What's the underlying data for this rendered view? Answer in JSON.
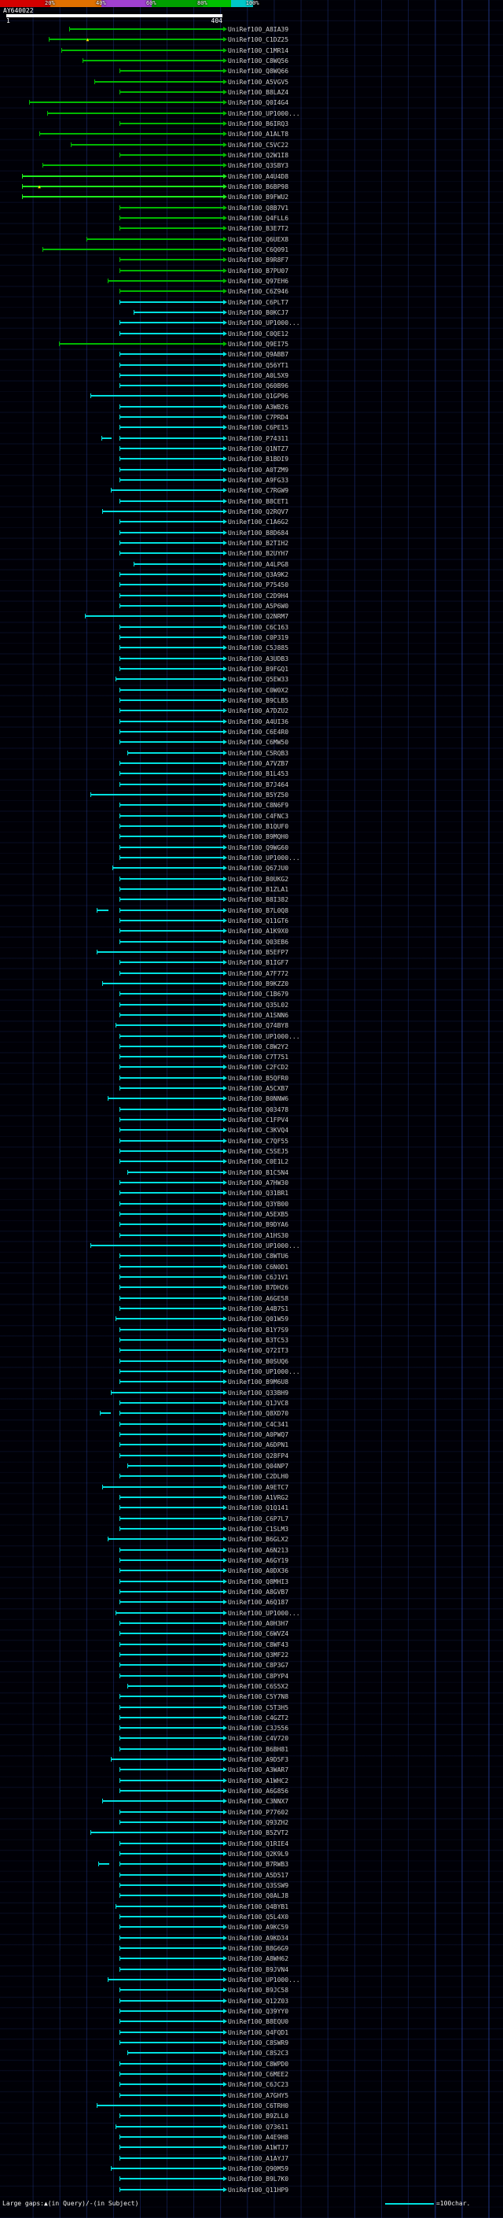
{
  "chart_data": {
    "type": "bar",
    "subtype": "sequence-similarity-alignment-overview",
    "title": "AY640022",
    "x_range": [
      1,
      404
    ],
    "legend_position": "top",
    "grid": true,
    "scale_bar": {
      "segments": [
        {
          "color": "#d40000",
          "width": 64
        },
        {
          "color": "#e07000",
          "width": 65
        },
        {
          "color": "#a040d0",
          "width": 64
        },
        {
          "color": "#00a000",
          "width": 65
        },
        {
          "color": "#00c000",
          "width": 36
        },
        {
          "color": "#00c8c8",
          "width": 28
        }
      ],
      "tick_labels": [
        {
          "t": "20%",
          "x": 64
        },
        {
          "t": "40%",
          "x": 129
        },
        {
          "t": "60%",
          "x": 193
        },
        {
          "t": "80%",
          "x": 258
        },
        {
          "t": "100%",
          "x": 322
        }
      ]
    },
    "query": {
      "name": "AY640022",
      "start": "1",
      "end": "404"
    },
    "label_prefix": "UniRef100_",
    "gap_glyph": "▲",
    "colors": {
      "c": "#00e0e0",
      "g": "#00b800",
      "G": "#1dec1d",
      "query": "#ffffff",
      "gap_marker": "#ffe000"
    },
    "defaults": {
      "end": 404,
      "color": "c"
    },
    "hits": [
      {
        "l": "A8IA39",
        "s": 118,
        "c": "g"
      },
      {
        "l": "C1DZ25",
        "s": 80,
        "c": "g",
        "gap": 150
      },
      {
        "l": "C1MR14",
        "s": 104,
        "c": "g"
      },
      {
        "l": "C8WQ56",
        "s": 143,
        "c": "g"
      },
      {
        "l": "Q8WQ66",
        "s": 212,
        "c": "g"
      },
      {
        "l": "A5VGV5",
        "s": 165,
        "c": "g"
      },
      {
        "l": "B8LAZ4",
        "s": 212,
        "c": "g"
      },
      {
        "l": "Q0I4G4",
        "s": 43,
        "c": "g"
      },
      {
        "l": "UP1000...",
        "s": 77,
        "c": "g"
      },
      {
        "l": "B6IRQ3",
        "s": 212,
        "c": "g"
      },
      {
        "l": "A1ALT8",
        "s": 62,
        "c": "g"
      },
      {
        "l": "C5VC22",
        "s": 121,
        "c": "g"
      },
      {
        "l": "Q2W1I8",
        "s": 212,
        "c": "g"
      },
      {
        "l": "Q3SBY3",
        "s": 69,
        "c": "g"
      },
      {
        "l": "A4U4D8",
        "s": 30,
        "c": "G"
      },
      {
        "l": "B6BP98",
        "s": 30,
        "c": "G",
        "gap": 60
      },
      {
        "l": "B9FWU2",
        "s": 30,
        "c": "G"
      },
      {
        "l": "Q8B7V1",
        "s": 212,
        "c": "g"
      },
      {
        "l": "Q4FLL6",
        "s": 212,
        "c": "g"
      },
      {
        "l": "B3E7T2",
        "s": 212,
        "c": "g"
      },
      {
        "l": "Q6UEX8",
        "s": 150,
        "c": "g"
      },
      {
        "l": "C6Q091",
        "s": 68,
        "c": "g"
      },
      {
        "l": "B9R8F7",
        "s": 212,
        "c": "g"
      },
      {
        "l": "B7PU07",
        "s": 212,
        "c": "g"
      },
      {
        "l": "Q97EH6",
        "s": 190,
        "c": "g"
      },
      {
        "l": "C6Z946",
        "s": 212,
        "c": "g"
      },
      {
        "l": "C6PLT7",
        "s": 212
      },
      {
        "l": "B0KCJ7",
        "s": 238
      },
      {
        "l": "UP1000...",
        "s": 212
      },
      {
        "l": "C0QE12",
        "s": 212
      },
      {
        "l": "Q9EI75",
        "s": 99,
        "c": "g"
      },
      {
        "l": "Q9ABB7",
        "s": 212
      },
      {
        "l": "Q56YT1",
        "s": 212
      },
      {
        "l": "A0L5X9",
        "s": 212
      },
      {
        "l": "Q60B96",
        "s": 212
      },
      {
        "l": "Q1GP96",
        "s": 158
      },
      {
        "l": "A3WB26",
        "s": 212
      },
      {
        "l": "C7PRD4",
        "s": 212
      },
      {
        "l": "C6PE15",
        "s": 212
      },
      {
        "l": "P74311",
        "s": 212,
        "pre": [
          178,
          196
        ]
      },
      {
        "l": "Q1NTZ7",
        "s": 212
      },
      {
        "l": "B1BDI9",
        "s": 212
      },
      {
        "l": "A0TZM9",
        "s": 212
      },
      {
        "l": "A9FG33",
        "s": 212
      },
      {
        "l": "C7RGW9",
        "s": 196
      },
      {
        "l": "B8CET1",
        "s": 212
      },
      {
        "l": "Q2RQV7",
        "s": 180
      },
      {
        "l": "C1A6G2",
        "s": 212
      },
      {
        "l": "B8D684",
        "s": 212
      },
      {
        "l": "B2TIH2",
        "s": 212
      },
      {
        "l": "B2UYH7",
        "s": 212
      },
      {
        "l": "A4LPG8",
        "s": 238
      },
      {
        "l": "Q3A9K2",
        "s": 212
      },
      {
        "l": "P75450",
        "s": 212
      },
      {
        "l": "C2D9H4",
        "s": 212
      },
      {
        "l": "A5P6W0",
        "s": 212
      },
      {
        "l": "Q2NRM7",
        "s": 148
      },
      {
        "l": "C6C163",
        "s": 212
      },
      {
        "l": "C0P319",
        "s": 212
      },
      {
        "l": "C5J885",
        "s": 212
      },
      {
        "l": "A3UDB3",
        "s": 212
      },
      {
        "l": "B9FGQ1",
        "s": 212
      },
      {
        "l": "Q5EW33",
        "s": 205
      },
      {
        "l": "C0W0X2",
        "s": 212
      },
      {
        "l": "B9CLB5",
        "s": 212
      },
      {
        "l": "A7DZU2",
        "s": 212
      },
      {
        "l": "A4UI36",
        "s": 212
      },
      {
        "l": "C6E4R0",
        "s": 212
      },
      {
        "l": "C6MW50",
        "s": 212
      },
      {
        "l": "C5RQB3",
        "s": 226
      },
      {
        "l": "A7VZB7",
        "s": 212
      },
      {
        "l": "B1L453",
        "s": 212
      },
      {
        "l": "B7J464",
        "s": 212
      },
      {
        "l": "B5YZ50",
        "s": 158
      },
      {
        "l": "C8N6F9",
        "s": 212
      },
      {
        "l": "C4FNC3",
        "s": 212
      },
      {
        "l": "B1QUF0",
        "s": 212
      },
      {
        "l": "B9MQH0",
        "s": 212
      },
      {
        "l": "Q9WG60",
        "s": 212
      },
      {
        "l": "UP1000...",
        "s": 212
      },
      {
        "l": "Q67JU0",
        "s": 199
      },
      {
        "l": "B0UKG2",
        "s": 212
      },
      {
        "l": "B1ZLA1",
        "s": 212
      },
      {
        "l": "B8I382",
        "s": 212
      },
      {
        "l": "B7L0Q8",
        "s": 212,
        "pre": [
          170,
          190
        ]
      },
      {
        "l": "Q11GT6",
        "s": 212
      },
      {
        "l": "A1K9X0",
        "s": 212
      },
      {
        "l": "Q03EB6",
        "s": 212
      },
      {
        "l": "B5EFP7",
        "s": 170
      },
      {
        "l": "B1IGF7",
        "s": 212
      },
      {
        "l": "A7F772",
        "s": 212
      },
      {
        "l": "B9KZZ0",
        "s": 180
      },
      {
        "l": "C1B679",
        "s": 212
      },
      {
        "l": "Q35L02",
        "s": 212
      },
      {
        "l": "A1SNN6",
        "s": 212
      },
      {
        "l": "Q74BY8",
        "s": 205
      },
      {
        "l": "UP1000...",
        "s": 212
      },
      {
        "l": "C8W2Y2",
        "s": 212
      },
      {
        "l": "C7T751",
        "s": 212
      },
      {
        "l": "C2FCD2",
        "s": 212
      },
      {
        "l": "B5QFR0",
        "s": 212
      },
      {
        "l": "A5CXB7",
        "s": 212
      },
      {
        "l": "B0NNW6",
        "s": 190
      },
      {
        "l": "Q03478",
        "s": 212
      },
      {
        "l": "C1FPV4",
        "s": 212
      },
      {
        "l": "C3KVQ4",
        "s": 212
      },
      {
        "l": "C7QF55",
        "s": 212
      },
      {
        "l": "C5SEJ5",
        "s": 212
      },
      {
        "l": "C0E1L2",
        "s": 212
      },
      {
        "l": "B1C5N4",
        "s": 226
      },
      {
        "l": "A7HW30",
        "s": 212
      },
      {
        "l": "Q31BR1",
        "s": 212
      },
      {
        "l": "Q3YB00",
        "s": 212
      },
      {
        "l": "A5EXB5",
        "s": 212
      },
      {
        "l": "B9DYA6",
        "s": 212
      },
      {
        "l": "A1HS30",
        "s": 212
      },
      {
        "l": "UP1000...",
        "s": 158
      },
      {
        "l": "C8WTU6",
        "s": 212
      },
      {
        "l": "C6N0D1",
        "s": 212
      },
      {
        "l": "C6J1V1",
        "s": 212
      },
      {
        "l": "B7DH26",
        "s": 212
      },
      {
        "l": "A6GE58",
        "s": 212
      },
      {
        "l": "A4B7S1",
        "s": 212
      },
      {
        "l": "Q01W59",
        "s": 205
      },
      {
        "l": "B1Y7S9",
        "s": 212
      },
      {
        "l": "B3TC53",
        "s": 212
      },
      {
        "l": "Q72IT3",
        "s": 212
      },
      {
        "l": "B0SUQ6",
        "s": 212
      },
      {
        "l": "UP1000...",
        "s": 212
      },
      {
        "l": "B9M6U8",
        "s": 212
      },
      {
        "l": "Q33BH9",
        "s": 196
      },
      {
        "l": "Q1JVC8",
        "s": 212
      },
      {
        "l": "Q8XD70",
        "s": 212,
        "pre": [
          175,
          195
        ]
      },
      {
        "l": "C4C341",
        "s": 212
      },
      {
        "l": "A0PWQ7",
        "s": 212
      },
      {
        "l": "A6DPN1",
        "s": 212
      },
      {
        "l": "Q28FP4",
        "s": 212
      },
      {
        "l": "Q04NP7",
        "s": 226
      },
      {
        "l": "C2DLH0",
        "s": 212
      },
      {
        "l": "A9ETC7",
        "s": 180
      },
      {
        "l": "A1VRG2",
        "s": 212
      },
      {
        "l": "Q1Q141",
        "s": 212
      },
      {
        "l": "C6P7L7",
        "s": 212
      },
      {
        "l": "C1SLM3",
        "s": 212
      },
      {
        "l": "B6GLX2",
        "s": 190
      },
      {
        "l": "A6N213",
        "s": 212
      },
      {
        "l": "A6GY19",
        "s": 212
      },
      {
        "l": "A0DX36",
        "s": 212
      },
      {
        "l": "Q8MHI3",
        "s": 212
      },
      {
        "l": "A8GVB7",
        "s": 212
      },
      {
        "l": "A6Q187",
        "s": 212
      },
      {
        "l": "UP1000...",
        "s": 205
      },
      {
        "l": "A0H3H7",
        "s": 212
      },
      {
        "l": "C6WVZ4",
        "s": 212
      },
      {
        "l": "C8WF43",
        "s": 212
      },
      {
        "l": "Q3MF22",
        "s": 212
      },
      {
        "l": "C8P3G7",
        "s": 212
      },
      {
        "l": "C8PYP4",
        "s": 212
      },
      {
        "l": "C6S5X2",
        "s": 226
      },
      {
        "l": "C5Y7N8",
        "s": 212
      },
      {
        "l": "C5T3H5",
        "s": 212
      },
      {
        "l": "C4GZT2",
        "s": 212
      },
      {
        "l": "C3J556",
        "s": 212
      },
      {
        "l": "C4V720",
        "s": 212
      },
      {
        "l": "B6BH81",
        "s": 212
      },
      {
        "l": "A9D5F3",
        "s": 196
      },
      {
        "l": "A3WAR7",
        "s": 212
      },
      {
        "l": "A1WHC2",
        "s": 212
      },
      {
        "l": "A6G856",
        "s": 212
      },
      {
        "l": "C3NNX7",
        "s": 180
      },
      {
        "l": "P77602",
        "s": 212
      },
      {
        "l": "Q93ZH2",
        "s": 212
      },
      {
        "l": "B5ZVT2",
        "s": 158
      },
      {
        "l": "Q1RIE4",
        "s": 212
      },
      {
        "l": "Q2K9L9",
        "s": 212
      },
      {
        "l": "B7RWB3",
        "s": 212,
        "pre": [
          172,
          192
        ]
      },
      {
        "l": "A5D517",
        "s": 212
      },
      {
        "l": "Q3SSW9",
        "s": 212
      },
      {
        "l": "Q0ALJ8",
        "s": 212
      },
      {
        "l": "Q4BYB1",
        "s": 205
      },
      {
        "l": "Q5L4X0",
        "s": 212
      },
      {
        "l": "A9KC59",
        "s": 212
      },
      {
        "l": "A9KD34",
        "s": 212
      },
      {
        "l": "B8G6G9",
        "s": 212
      },
      {
        "l": "A8WH62",
        "s": 212
      },
      {
        "l": "B9JVN4",
        "s": 212
      },
      {
        "l": "UP1000...",
        "s": 190
      },
      {
        "l": "B9JC58",
        "s": 212
      },
      {
        "l": "Q12Z03",
        "s": 212
      },
      {
        "l": "Q39YY0",
        "s": 212
      },
      {
        "l": "B8EQU0",
        "s": 212
      },
      {
        "l": "Q4FQD1",
        "s": 212
      },
      {
        "l": "C8SWR9",
        "s": 212
      },
      {
        "l": "C8S2C3",
        "s": 226
      },
      {
        "l": "C8WPD0",
        "s": 212
      },
      {
        "l": "C6MEE2",
        "s": 212
      },
      {
        "l": "C6JC23",
        "s": 212
      },
      {
        "l": "A7GHY5",
        "s": 212
      },
      {
        "l": "C6TRH0",
        "s": 170
      },
      {
        "l": "B9ZLL0",
        "s": 212
      },
      {
        "l": "Q73611",
        "s": 205
      },
      {
        "l": "A4E9H8",
        "s": 212
      },
      {
        "l": "A1WTJ7",
        "s": 212
      },
      {
        "l": "A1AYJ7",
        "s": 212
      },
      {
        "l": "Q90M59",
        "s": 196
      },
      {
        "l": "B9L7K0",
        "s": 212
      },
      {
        "l": "Q11HP9",
        "s": 212
      }
    ]
  },
  "footer": {
    "gaps_legend": "Large gaps:▲(in Query)/-(in Subject)",
    "scale_line_label": "=100char."
  }
}
